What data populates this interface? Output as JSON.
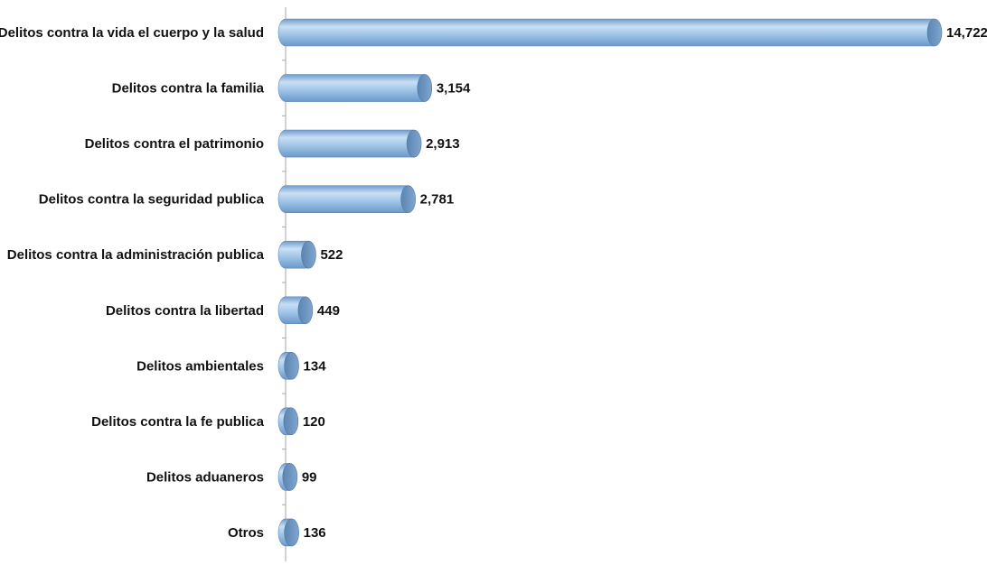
{
  "chart_data": {
    "type": "bar",
    "orientation": "horizontal",
    "title": "",
    "xlabel": "",
    "ylabel": "",
    "categories": [
      "Delitos contra la vida el cuerpo y la salud",
      "Delitos contra la familia",
      "Delitos contra el patrimonio",
      "Delitos contra la seguridad publica",
      "Delitos contra la administración publica",
      "Delitos contra la libertad",
      "Delitos ambientales",
      "Delitos contra la fe publica",
      "Delitos aduaneros",
      "Otros"
    ],
    "values": [
      14722,
      3154,
      2913,
      2781,
      522,
      449,
      134,
      120,
      99,
      136
    ],
    "value_labels": [
      "14,722",
      "3,154",
      "2,913",
      "2,781",
      "522",
      "449",
      "134",
      "120",
      "99",
      "136"
    ],
    "xlim": [
      0,
      15000
    ],
    "grid": false,
    "legend": "none",
    "bar_style": "cylinder",
    "bar_color": "#9dc3e6",
    "bar_end_color": "#5b84b1"
  }
}
